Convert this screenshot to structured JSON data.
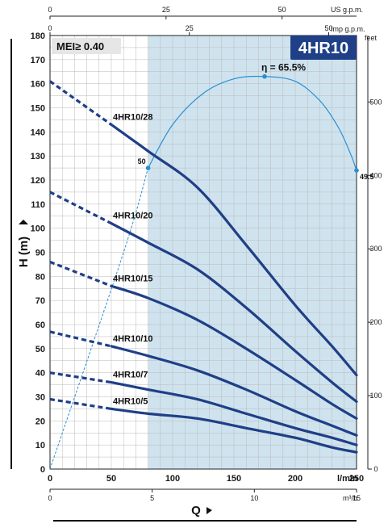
{
  "chart_data": {
    "type": "line",
    "title": "4HR10",
    "badge": "MEI≥ 0.40",
    "xlabel": "Q",
    "ylabel": "H (m)",
    "x_unit_lmin": "l/min",
    "x_unit_m3h": "m³/h",
    "top_unit_us": "US g.p.m.",
    "top_unit_imp": "Imp g.p.m.",
    "right_unit": "feet",
    "xlim": [
      0,
      250
    ],
    "ylim": [
      0,
      180
    ],
    "x_ticks": [
      0,
      50,
      100,
      150,
      200,
      250
    ],
    "y_ticks": [
      0,
      10,
      20,
      30,
      40,
      50,
      60,
      70,
      80,
      90,
      100,
      110,
      120,
      130,
      140,
      150,
      160,
      170,
      180
    ],
    "m3h_ticks": [
      0,
      5,
      10,
      15
    ],
    "us_gpm_ticks": [
      0,
      25,
      50
    ],
    "imp_gpm_ticks": [
      0,
      25,
      50
    ],
    "feet_ticks": [
      0,
      100,
      200,
      300,
      400,
      500
    ],
    "operating_range": [
      80,
      250
    ],
    "series": [
      {
        "name": "4HR10/28",
        "dashed": [
          [
            0,
            161
          ],
          [
            50,
            143
          ]
        ],
        "solid": [
          [
            50,
            143
          ],
          [
            80,
            132
          ],
          [
            120,
            117
          ],
          [
            160,
            93
          ],
          [
            200,
            68
          ],
          [
            230,
            51
          ],
          [
            250,
            39
          ]
        ]
      },
      {
        "name": "4HR10/20",
        "dashed": [
          [
            0,
            115
          ],
          [
            50,
            102
          ]
        ],
        "solid": [
          [
            50,
            102
          ],
          [
            80,
            94
          ],
          [
            120,
            83
          ],
          [
            160,
            67
          ],
          [
            200,
            49
          ],
          [
            230,
            36
          ],
          [
            250,
            28
          ]
        ]
      },
      {
        "name": "4HR10/15",
        "dashed": [
          [
            0,
            86
          ],
          [
            50,
            76
          ]
        ],
        "solid": [
          [
            50,
            76
          ],
          [
            80,
            71
          ],
          [
            120,
            62
          ],
          [
            160,
            50
          ],
          [
            200,
            37
          ],
          [
            230,
            27
          ],
          [
            250,
            21
          ]
        ]
      },
      {
        "name": "4HR10/10",
        "dashed": [
          [
            0,
            57
          ],
          [
            50,
            51
          ]
        ],
        "solid": [
          [
            50,
            51
          ],
          [
            80,
            47
          ],
          [
            120,
            41
          ],
          [
            160,
            33
          ],
          [
            200,
            24
          ],
          [
            230,
            18
          ],
          [
            250,
            14
          ]
        ]
      },
      {
        "name": "4HR10/7",
        "dashed": [
          [
            0,
            40
          ],
          [
            50,
            36
          ]
        ],
        "solid": [
          [
            50,
            36
          ],
          [
            80,
            33
          ],
          [
            120,
            29
          ],
          [
            160,
            23
          ],
          [
            200,
            17
          ],
          [
            230,
            13
          ],
          [
            250,
            10
          ]
        ]
      },
      {
        "name": "4HR10/5",
        "dashed": [
          [
            0,
            29
          ],
          [
            50,
            25
          ]
        ],
        "solid": [
          [
            50,
            25
          ],
          [
            80,
            23
          ],
          [
            120,
            21
          ],
          [
            160,
            17
          ],
          [
            200,
            13
          ],
          [
            230,
            9
          ],
          [
            250,
            7
          ]
        ]
      }
    ],
    "efficiency": {
      "peak_label": "η = 65.5%",
      "peak": [
        175,
        163
      ],
      "left_label": "50",
      "left_point": [
        80,
        125
      ],
      "right_label": "49.5",
      "right_point": [
        250,
        124
      ],
      "dashed": [
        [
          0,
          0
        ],
        [
          60,
          90
        ],
        [
          80,
          125
        ]
      ],
      "solid": [
        [
          80,
          125
        ],
        [
          100,
          143
        ],
        [
          125,
          156
        ],
        [
          150,
          162
        ],
        [
          175,
          163
        ],
        [
          200,
          161
        ],
        [
          220,
          153
        ],
        [
          235,
          142
        ],
        [
          245,
          131
        ],
        [
          250,
          124
        ]
      ]
    }
  }
}
